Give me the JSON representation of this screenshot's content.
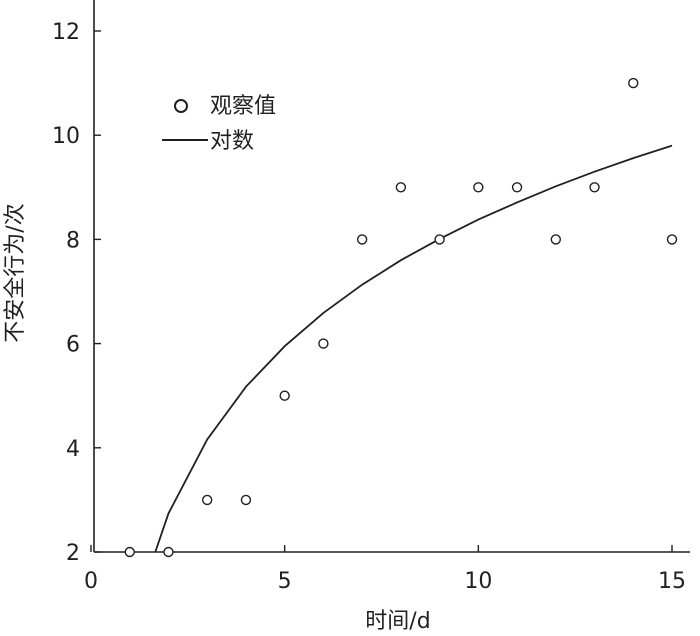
{
  "chart_data": {
    "type": "scatter",
    "title": "",
    "xlabel": "时间/d",
    "ylabel": "不安全行为/次",
    "xlim": [
      0,
      15
    ],
    "ylim": [
      2,
      12.6
    ],
    "xticks": [
      0,
      5,
      10,
      15
    ],
    "yticks": [
      2,
      4,
      6,
      8,
      10,
      12
    ],
    "grid": false,
    "legend_position": "top-left",
    "series": [
      {
        "name": "观察值",
        "kind": "points",
        "marker": "open-circle",
        "points": [
          {
            "x": 1,
            "y": 2
          },
          {
            "x": 2,
            "y": 2
          },
          {
            "x": 3,
            "y": 3
          },
          {
            "x": 4,
            "y": 3
          },
          {
            "x": 5,
            "y": 5
          },
          {
            "x": 6,
            "y": 6
          },
          {
            "x": 7,
            "y": 8
          },
          {
            "x": 8,
            "y": 9
          },
          {
            "x": 9,
            "y": 8
          },
          {
            "x": 10,
            "y": 9
          },
          {
            "x": 11,
            "y": 9
          },
          {
            "x": 12,
            "y": 8
          },
          {
            "x": 13,
            "y": 9
          },
          {
            "x": 14,
            "y": 11
          },
          {
            "x": 15,
            "y": 8
          }
        ]
      },
      {
        "name": "对数",
        "kind": "fit-line",
        "function": "logarithmic",
        "points": [
          {
            "x": 1.66,
            "y": 2.0
          },
          {
            "x": 2,
            "y": 2.74
          },
          {
            "x": 3,
            "y": 4.16
          },
          {
            "x": 4,
            "y": 5.17
          },
          {
            "x": 5,
            "y": 5.95
          },
          {
            "x": 6,
            "y": 6.59
          },
          {
            "x": 7,
            "y": 7.13
          },
          {
            "x": 8,
            "y": 7.6
          },
          {
            "x": 9,
            "y": 8.01
          },
          {
            "x": 10,
            "y": 8.38
          },
          {
            "x": 11,
            "y": 8.71
          },
          {
            "x": 12,
            "y": 9.02
          },
          {
            "x": 13,
            "y": 9.3
          },
          {
            "x": 14,
            "y": 9.56
          },
          {
            "x": 15,
            "y": 9.8
          }
        ]
      }
    ]
  },
  "colors": {
    "axis": "#231f20",
    "line": "#231f20",
    "marker_stroke": "#231f20",
    "marker_fill": "#ffffff"
  }
}
